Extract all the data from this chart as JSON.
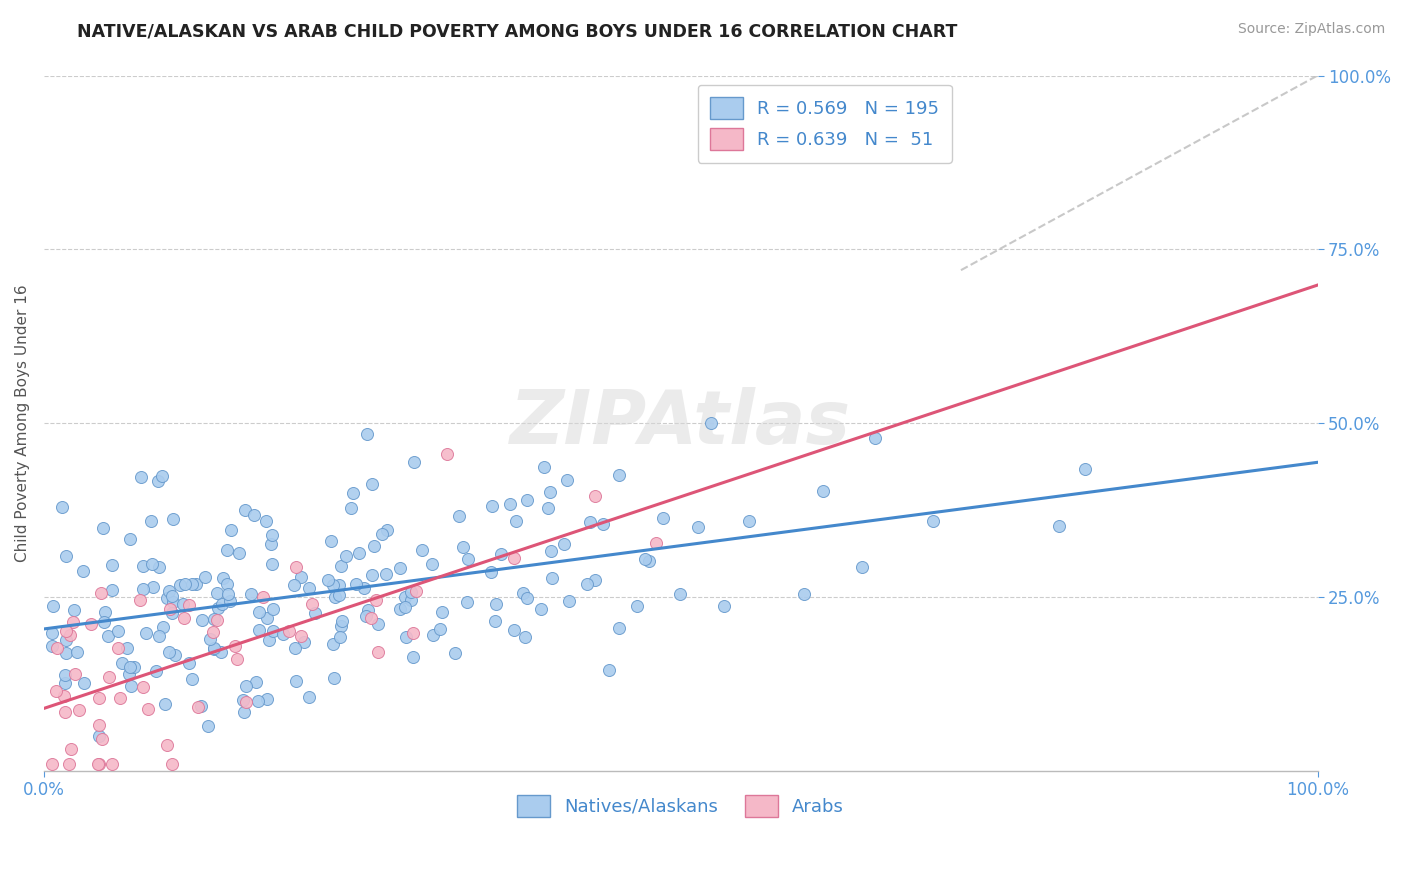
{
  "title": "NATIVE/ALASKAN VS ARAB CHILD POVERTY AMONG BOYS UNDER 16 CORRELATION CHART",
  "source": "Source: ZipAtlas.com",
  "ylabel": "Child Poverty Among Boys Under 16",
  "background_color": "#ffffff",
  "grid_color": "#cccccc",
  "native_color": "#aaccee",
  "arab_color": "#f5b8c8",
  "native_edge_color": "#6699cc",
  "arab_edge_color": "#dd7799",
  "native_line_color": "#4488cc",
  "arab_line_color": "#dd5577",
  "tick_color": "#5599dd",
  "watermark": "ZIPAtlas",
  "legend_R_native": "0.569",
  "legend_N_native": "195",
  "legend_R_arab": "0.639",
  "legend_N_arab": "51"
}
